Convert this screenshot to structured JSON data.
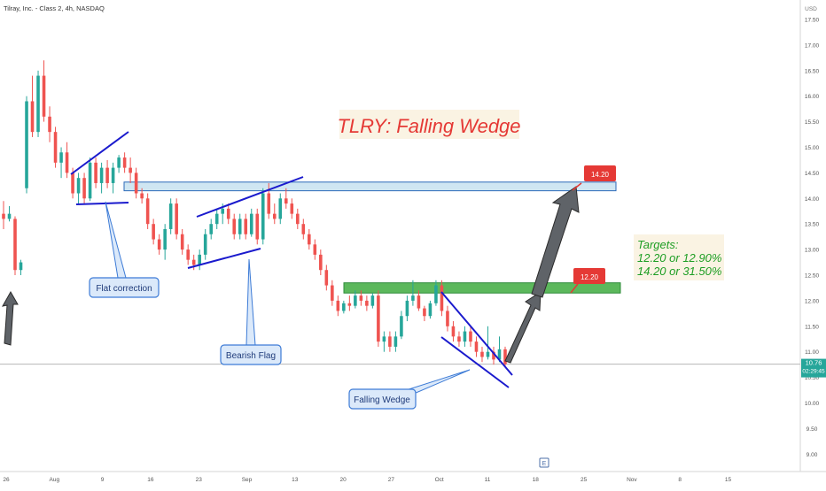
{
  "header": {
    "symbol_title": "Tilray, Inc. - Class 2, 4h, NASDAQ",
    "currency": "USD"
  },
  "price_badge": {
    "price": "10.76",
    "countdown": "02:29:45"
  },
  "annotations": {
    "headline": "TLRY: Falling Wedge",
    "targets_title": "Targets:",
    "targets_line1": "12.20 or 12.90%",
    "targets_line2": "14.20 or 31.50%",
    "tag_upper": "14.20",
    "tag_lower": "12.20",
    "callout_flat": "Flat correction",
    "callout_flag": "Bearish Flag",
    "callout_wedge": "Falling Wedge"
  },
  "event_marker": "E",
  "colors": {
    "up": "#26a69a",
    "down": "#ef5350",
    "trendline": "#1a1acd",
    "headline": "#e53935",
    "targets_text": "#1e9e24",
    "tag_bg": "#e53935",
    "callout_bg": "#dbe9fa",
    "callout_border": "#3d7bd6",
    "zone_upper_fill": "#cfe6f2",
    "zone_upper_border": "#2c6ab8",
    "zone_lower_fill": "#5cb85c",
    "zone_lower_border": "#2e8b3a",
    "projection_arrow": "#5f6368",
    "price_line": "#b7b7b7"
  },
  "chart_data": {
    "type": "candlestick",
    "title": "Tilray, Inc. - Class 2, 4h, NASDAQ",
    "y_axis_unit": "USD",
    "ylim": [
      8.8,
      17.8
    ],
    "y_ticks": [
      "17.50",
      "17.00",
      "16.50",
      "16.00",
      "15.50",
      "15.00",
      "14.50",
      "14.00",
      "13.50",
      "13.00",
      "12.50",
      "12.00",
      "11.50",
      "11.00",
      "10.50",
      "10.00",
      "9.50",
      "9.00"
    ],
    "x_ticks": [
      "26",
      "Aug",
      "9",
      "16",
      "23",
      "Sep",
      "13",
      "20",
      "27",
      "Oct",
      "11",
      "18",
      "25",
      "Nov",
      "8",
      "15"
    ],
    "last_price": 10.76,
    "zones": [
      {
        "label": "14.20",
        "low": 14.15,
        "high": 14.32
      },
      {
        "label": "12.20",
        "low": 12.15,
        "high": 12.35
      }
    ],
    "candles": [
      {
        "o": 13.7,
        "h": 13.95,
        "l": 13.4,
        "c": 13.6
      },
      {
        "o": 13.6,
        "h": 13.85,
        "l": 13.55,
        "c": 13.7
      },
      {
        "o": 13.6,
        "h": 13.65,
        "l": 12.5,
        "c": 12.6
      },
      {
        "o": 12.6,
        "h": 12.8,
        "l": 12.5,
        "c": 12.75
      },
      {
        "o": 14.2,
        "h": 16.0,
        "l": 14.1,
        "c": 15.9
      },
      {
        "o": 15.9,
        "h": 16.4,
        "l": 15.2,
        "c": 15.3
      },
      {
        "o": 15.3,
        "h": 16.5,
        "l": 15.2,
        "c": 16.4
      },
      {
        "o": 16.4,
        "h": 16.7,
        "l": 15.5,
        "c": 15.6
      },
      {
        "o": 15.6,
        "h": 15.8,
        "l": 15.1,
        "c": 15.3
      },
      {
        "o": 15.3,
        "h": 15.4,
        "l": 14.6,
        "c": 14.7
      },
      {
        "o": 14.7,
        "h": 15.0,
        "l": 14.4,
        "c": 14.9
      },
      {
        "o": 14.9,
        "h": 15.1,
        "l": 14.4,
        "c": 14.5
      },
      {
        "o": 14.5,
        "h": 14.6,
        "l": 14.0,
        "c": 14.1
      },
      {
        "o": 14.1,
        "h": 14.5,
        "l": 13.9,
        "c": 14.4
      },
      {
        "o": 14.4,
        "h": 14.5,
        "l": 13.9,
        "c": 14.0
      },
      {
        "o": 14.0,
        "h": 14.8,
        "l": 13.95,
        "c": 14.7
      },
      {
        "o": 14.7,
        "h": 14.8,
        "l": 14.2,
        "c": 14.3
      },
      {
        "o": 14.3,
        "h": 14.7,
        "l": 14.1,
        "c": 14.6
      },
      {
        "o": 14.6,
        "h": 14.75,
        "l": 14.2,
        "c": 14.3
      },
      {
        "o": 14.3,
        "h": 14.7,
        "l": 14.1,
        "c": 14.6
      },
      {
        "o": 14.6,
        "h": 14.85,
        "l": 14.5,
        "c": 14.8
      },
      {
        "o": 14.8,
        "h": 14.9,
        "l": 14.5,
        "c": 14.6
      },
      {
        "o": 14.6,
        "h": 14.8,
        "l": 14.3,
        "c": 14.5
      },
      {
        "o": 14.5,
        "h": 14.6,
        "l": 14.0,
        "c": 14.1
      },
      {
        "o": 14.1,
        "h": 14.2,
        "l": 13.9,
        "c": 14.0
      },
      {
        "o": 14.0,
        "h": 14.1,
        "l": 13.4,
        "c": 13.5
      },
      {
        "o": 13.5,
        "h": 13.6,
        "l": 13.1,
        "c": 13.2
      },
      {
        "o": 13.2,
        "h": 13.3,
        "l": 12.9,
        "c": 13.0
      },
      {
        "o": 13.0,
        "h": 13.5,
        "l": 12.8,
        "c": 13.4
      },
      {
        "o": 13.4,
        "h": 14.0,
        "l": 13.3,
        "c": 13.9
      },
      {
        "o": 13.9,
        "h": 14.0,
        "l": 13.2,
        "c": 13.3
      },
      {
        "o": 13.3,
        "h": 13.4,
        "l": 12.9,
        "c": 13.0
      },
      {
        "o": 13.0,
        "h": 13.1,
        "l": 12.7,
        "c": 12.8
      },
      {
        "o": 12.8,
        "h": 12.9,
        "l": 12.6,
        "c": 12.7
      },
      {
        "o": 12.7,
        "h": 13.0,
        "l": 12.6,
        "c": 12.9
      },
      {
        "o": 12.9,
        "h": 13.4,
        "l": 12.8,
        "c": 13.3
      },
      {
        "o": 13.3,
        "h": 13.6,
        "l": 13.2,
        "c": 13.5
      },
      {
        "o": 13.5,
        "h": 13.8,
        "l": 13.4,
        "c": 13.7
      },
      {
        "o": 13.7,
        "h": 13.9,
        "l": 13.5,
        "c": 13.8
      },
      {
        "o": 13.8,
        "h": 13.9,
        "l": 13.5,
        "c": 13.6
      },
      {
        "o": 13.6,
        "h": 13.7,
        "l": 13.2,
        "c": 13.3
      },
      {
        "o": 13.3,
        "h": 13.7,
        "l": 13.2,
        "c": 13.6
      },
      {
        "o": 13.6,
        "h": 13.7,
        "l": 13.2,
        "c": 13.3
      },
      {
        "o": 13.3,
        "h": 13.8,
        "l": 13.25,
        "c": 13.7
      },
      {
        "o": 13.7,
        "h": 13.8,
        "l": 13.1,
        "c": 13.2
      },
      {
        "o": 13.2,
        "h": 14.2,
        "l": 13.1,
        "c": 14.1
      },
      {
        "o": 14.1,
        "h": 14.3,
        "l": 13.6,
        "c": 13.7
      },
      {
        "o": 13.7,
        "h": 13.9,
        "l": 13.5,
        "c": 13.6
      },
      {
        "o": 13.6,
        "h": 14.1,
        "l": 13.5,
        "c": 14.0
      },
      {
        "o": 14.0,
        "h": 14.2,
        "l": 13.8,
        "c": 13.9
      },
      {
        "o": 13.9,
        "h": 14.0,
        "l": 13.6,
        "c": 13.7
      },
      {
        "o": 13.7,
        "h": 13.8,
        "l": 13.4,
        "c": 13.5
      },
      {
        "o": 13.5,
        "h": 13.6,
        "l": 13.2,
        "c": 13.3
      },
      {
        "o": 13.3,
        "h": 13.4,
        "l": 13.0,
        "c": 13.1
      },
      {
        "o": 13.1,
        "h": 13.2,
        "l": 12.8,
        "c": 12.9
      },
      {
        "o": 12.9,
        "h": 13.0,
        "l": 12.5,
        "c": 12.6
      },
      {
        "o": 12.6,
        "h": 12.7,
        "l": 12.2,
        "c": 12.3
      },
      {
        "o": 12.3,
        "h": 12.4,
        "l": 11.9,
        "c": 12.0
      },
      {
        "o": 12.0,
        "h": 12.1,
        "l": 11.7,
        "c": 11.8
      },
      {
        "o": 11.8,
        "h": 12.0,
        "l": 11.75,
        "c": 11.95
      },
      {
        "o": 11.95,
        "h": 12.1,
        "l": 11.8,
        "c": 11.9
      },
      {
        "o": 11.9,
        "h": 12.2,
        "l": 11.85,
        "c": 12.1
      },
      {
        "o": 12.1,
        "h": 12.2,
        "l": 11.9,
        "c": 12.0
      },
      {
        "o": 12.0,
        "h": 12.1,
        "l": 11.8,
        "c": 11.9
      },
      {
        "o": 11.9,
        "h": 12.15,
        "l": 11.85,
        "c": 12.1
      },
      {
        "o": 12.1,
        "h": 12.2,
        "l": 11.1,
        "c": 11.2
      },
      {
        "o": 11.2,
        "h": 11.4,
        "l": 11.0,
        "c": 11.3
      },
      {
        "o": 11.3,
        "h": 11.4,
        "l": 11.0,
        "c": 11.1
      },
      {
        "o": 11.1,
        "h": 11.4,
        "l": 11.0,
        "c": 11.3
      },
      {
        "o": 11.3,
        "h": 11.8,
        "l": 11.25,
        "c": 11.7
      },
      {
        "o": 11.7,
        "h": 12.1,
        "l": 11.6,
        "c": 12.0
      },
      {
        "o": 12.0,
        "h": 12.4,
        "l": 11.9,
        "c": 12.1
      },
      {
        "o": 12.1,
        "h": 12.2,
        "l": 11.8,
        "c": 11.85
      },
      {
        "o": 11.85,
        "h": 11.9,
        "l": 11.6,
        "c": 11.7
      },
      {
        "o": 11.7,
        "h": 12.0,
        "l": 11.65,
        "c": 11.95
      },
      {
        "o": 11.95,
        "h": 12.4,
        "l": 11.9,
        "c": 12.3
      },
      {
        "o": 12.3,
        "h": 12.4,
        "l": 11.7,
        "c": 11.8
      },
      {
        "o": 11.8,
        "h": 11.9,
        "l": 11.4,
        "c": 11.5
      },
      {
        "o": 11.5,
        "h": 11.6,
        "l": 11.2,
        "c": 11.3
      },
      {
        "o": 11.3,
        "h": 11.4,
        "l": 11.1,
        "c": 11.2
      },
      {
        "o": 11.2,
        "h": 11.5,
        "l": 11.1,
        "c": 11.4
      },
      {
        "o": 11.4,
        "h": 11.5,
        "l": 11.1,
        "c": 11.2
      },
      {
        "o": 11.2,
        "h": 11.3,
        "l": 10.9,
        "c": 11.0
      },
      {
        "o": 11.0,
        "h": 11.1,
        "l": 10.8,
        "c": 10.9
      },
      {
        "o": 10.9,
        "h": 11.5,
        "l": 10.85,
        "c": 11.0
      },
      {
        "o": 11.0,
        "h": 11.1,
        "l": 10.75,
        "c": 10.85
      },
      {
        "o": 10.85,
        "h": 11.3,
        "l": 10.8,
        "c": 11.05
      },
      {
        "o": 11.05,
        "h": 11.1,
        "l": 10.7,
        "c": 10.76
      }
    ]
  }
}
